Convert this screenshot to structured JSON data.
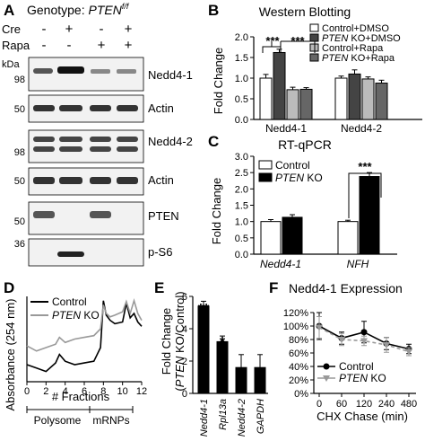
{
  "panels": {
    "A": {
      "letter": "A",
      "genotype_label": "Genotype: ",
      "genotype_gene": "PTEN",
      "genotype_sup": "f/f",
      "row_labels": [
        "Cre",
        "Rapa"
      ],
      "cre_signs": [
        "-",
        "+",
        "-",
        "+"
      ],
      "rapa_signs": [
        "-",
        "-",
        "+",
        "+"
      ],
      "kda_label": "kDa",
      "blots": [
        {
          "name": "Nedd4-1",
          "markers": [
            "98"
          ]
        },
        {
          "name": "Actin",
          "markers": [
            "50"
          ]
        },
        {
          "name": "Nedd4-2",
          "markers": [
            "98"
          ]
        },
        {
          "name": "Actin",
          "markers": [
            "50"
          ]
        },
        {
          "name": "PTEN",
          "markers": [
            "50"
          ]
        },
        {
          "name": "p-S6",
          "markers": [
            "36"
          ]
        }
      ]
    },
    "B": {
      "letter": "B",
      "title": "Western Blotting",
      "ylabel": "Fold Change",
      "legend": [
        {
          "label": "Control+DMSO",
          "color": "#ffffff"
        },
        {
          "gene": "PTEN",
          "label": " KO+DMSO",
          "color": "#444444"
        },
        {
          "label": "Control+Rapa",
          "color": "#bbbbbb"
        },
        {
          "gene": "PTEN",
          "label": " KO+Rapa",
          "color": "#666666"
        }
      ],
      "significance": [
        "***",
        "***"
      ]
    },
    "C": {
      "letter": "C",
      "title": "RT-qPCR",
      "ylabel": "Fold Change",
      "legend": [
        {
          "label": "Control",
          "color": "#ffffff"
        },
        {
          "gene": "PTEN",
          "label": " KO",
          "color": "#000000"
        }
      ],
      "significance": [
        "***"
      ]
    },
    "D": {
      "letter": "D",
      "ylabel": "Absorbance (254 nm)",
      "xlabel": "# Fractions",
      "legend": [
        {
          "label": "Control",
          "color": "#000000"
        },
        {
          "gene": "PTEN",
          "label": " KO",
          "color": "#999999"
        }
      ],
      "region_labels": [
        "Polysome",
        "mRNPs"
      ]
    },
    "E": {
      "letter": "E",
      "ylabel": "Fold Change",
      "ylabel_gene": "PTEN",
      "ylabel_rest": " KO/Control)",
      "ylabel_open": "(",
      "significance": [
        "**",
        "*"
      ]
    },
    "F": {
      "letter": "F",
      "title": "Nedd4-1 Expression",
      "xlabel": "CHX Chase (min)",
      "legend": [
        {
          "label": "Control",
          "color": "#000000"
        },
        {
          "gene": "PTEN",
          "label": " KO",
          "color": "#999999"
        }
      ]
    }
  },
  "chart_data": [
    {
      "panel": "B",
      "type": "bar",
      "categories": [
        "Nedd4-1",
        "Nedd4-2"
      ],
      "series": [
        {
          "values": [
            1.0,
            1.0
          ],
          "errors": [
            0.09,
            0.05
          ],
          "color": "#ffffff"
        },
        {
          "values": [
            1.62,
            1.1
          ],
          "errors": [
            0.08,
            0.1
          ],
          "color": "#444444"
        },
        {
          "values": [
            0.72,
            0.98
          ],
          "errors": [
            0.06,
            0.05
          ],
          "color": "#bbbbbb"
        },
        {
          "values": [
            0.73,
            0.88
          ],
          "errors": [
            0.04,
            0.07
          ],
          "color": "#666666"
        }
      ],
      "yticks": [
        "0.0",
        "0.5",
        "1.0",
        "1.5",
        "2.0"
      ],
      "ylim": [
        0,
        2.0
      ]
    },
    {
      "panel": "C",
      "type": "bar",
      "categories": [
        "Nedd4-1",
        "NFH"
      ],
      "series": [
        {
          "values": [
            1.0,
            1.0
          ],
          "errors": [
            0.06,
            0.04
          ],
          "color": "#ffffff"
        },
        {
          "values": [
            1.13,
            2.38
          ],
          "errors": [
            0.08,
            0.12
          ],
          "color": "#000000"
        }
      ],
      "yticks": [
        "0.0",
        "0.5",
        "1.0",
        "1.5",
        "2.0",
        "2.5",
        "3.0"
      ],
      "ylim": [
        0,
        3.0
      ]
    },
    {
      "panel": "D",
      "type": "line",
      "x": [
        0,
        1,
        2,
        3,
        3.4,
        4,
        5,
        6,
        7,
        7.7,
        8,
        8.3,
        8.7,
        9.2,
        10,
        10.4,
        10.8,
        11.2,
        11.6,
        12
      ],
      "series": [
        {
          "values": [
            0.2,
            0.16,
            0.12,
            0.22,
            0.32,
            0.24,
            0.2,
            0.22,
            0.24,
            0.4,
            0.95,
            0.78,
            0.72,
            0.68,
            0.7,
            0.92,
            0.75,
            0.8,
            0.7,
            0.65
          ],
          "color": "#000000"
        },
        {
          "values": [
            0.42,
            0.36,
            0.4,
            0.44,
            0.52,
            0.46,
            0.5,
            0.52,
            0.54,
            0.62,
            0.9,
            0.8,
            0.76,
            0.78,
            0.82,
            0.94,
            0.8,
            0.95,
            0.8,
            0.72
          ],
          "color": "#999999"
        }
      ],
      "xticks": [
        "0",
        "2",
        "4",
        "6",
        "8",
        "10",
        "12"
      ],
      "xlim": [
        0,
        12
      ],
      "ylim": [
        0,
        1
      ]
    },
    {
      "panel": "E",
      "type": "bar",
      "categories": [
        "Nedd4-1",
        "Rpl13a",
        "Nedd4-2",
        "GAPDH"
      ],
      "values": [
        5.4,
        3.2,
        1.6,
        1.6
      ],
      "errors": [
        0.3,
        0.35,
        0.8,
        0.8
      ],
      "yticks": [
        "0",
        "2",
        "4",
        "6"
      ],
      "ylim": [
        0,
        6
      ]
    },
    {
      "panel": "F",
      "type": "line",
      "x": [
        0,
        60,
        120,
        240,
        480
      ],
      "series": [
        {
          "values": [
            100,
            82,
            91,
            74,
            66
          ],
          "errors": [
            20,
            9,
            16,
            9,
            7
          ],
          "color": "#000000",
          "marker": "circle"
        },
        {
          "values": [
            98,
            80,
            78,
            72,
            62
          ],
          "errors": [
            16,
            9,
            7,
            11,
            6
          ],
          "color": "#999999",
          "marker": "triangle"
        }
      ],
      "yticks": [
        "0%",
        "20%",
        "40%",
        "60%",
        "80%",
        "100%",
        "120%"
      ],
      "xticks": [
        "0",
        "60",
        "120",
        "240",
        "480"
      ],
      "ylim": [
        0,
        120
      ]
    }
  ]
}
